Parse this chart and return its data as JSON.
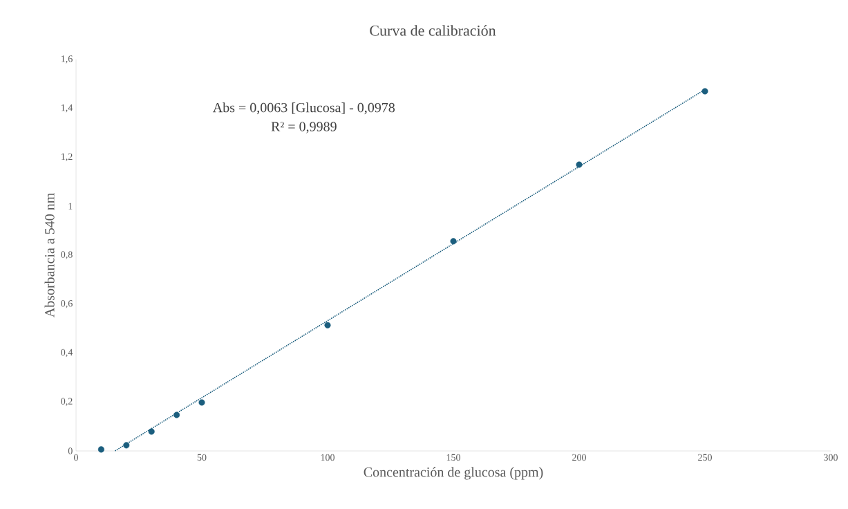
{
  "chart_data": {
    "type": "scatter",
    "title": "Curva  de calibración",
    "xlabel": "Concentración de glucosa (ppm)",
    "ylabel": "Absorbancia a 540 nm",
    "annotations": [
      "Abs = 0,0063  [Glucosa] - 0,0978",
      "R² = 0,9989"
    ],
    "marker": "circle",
    "xlim": [
      0,
      300
    ],
    "xticks": [
      0,
      50,
      100,
      150,
      200,
      250,
      300
    ],
    "ylim": [
      0,
      1.6
    ],
    "yticks": [
      0,
      {
        "value": 0.2,
        "label": "0,2"
      },
      {
        "value": 0.4,
        "label": "0,4"
      },
      {
        "value": 0.6,
        "label": "0,6"
      },
      {
        "value": 0.8,
        "label": "0,8"
      },
      1,
      {
        "value": 1.2,
        "label": "1,2"
      },
      {
        "value": 1.4,
        "label": "1,4"
      },
      {
        "value": 1.6,
        "label": "1,6"
      }
    ],
    "series": [
      {
        "color": "#1b5e7e",
        "x": [
          10,
          20,
          30,
          40,
          50,
          100,
          150,
          200,
          250
        ],
        "values": [
          0.006,
          0.023,
          0.079,
          0.147,
          0.198,
          0.514,
          0.857,
          1.17,
          1.47
        ]
      },
      {
        "type": "line",
        "line_style": "dotted",
        "marker": "none",
        "color": "#1b5e7e",
        "x": [
          15.5,
          250
        ],
        "values": [
          0,
          1.477
        ]
      }
    ]
  }
}
